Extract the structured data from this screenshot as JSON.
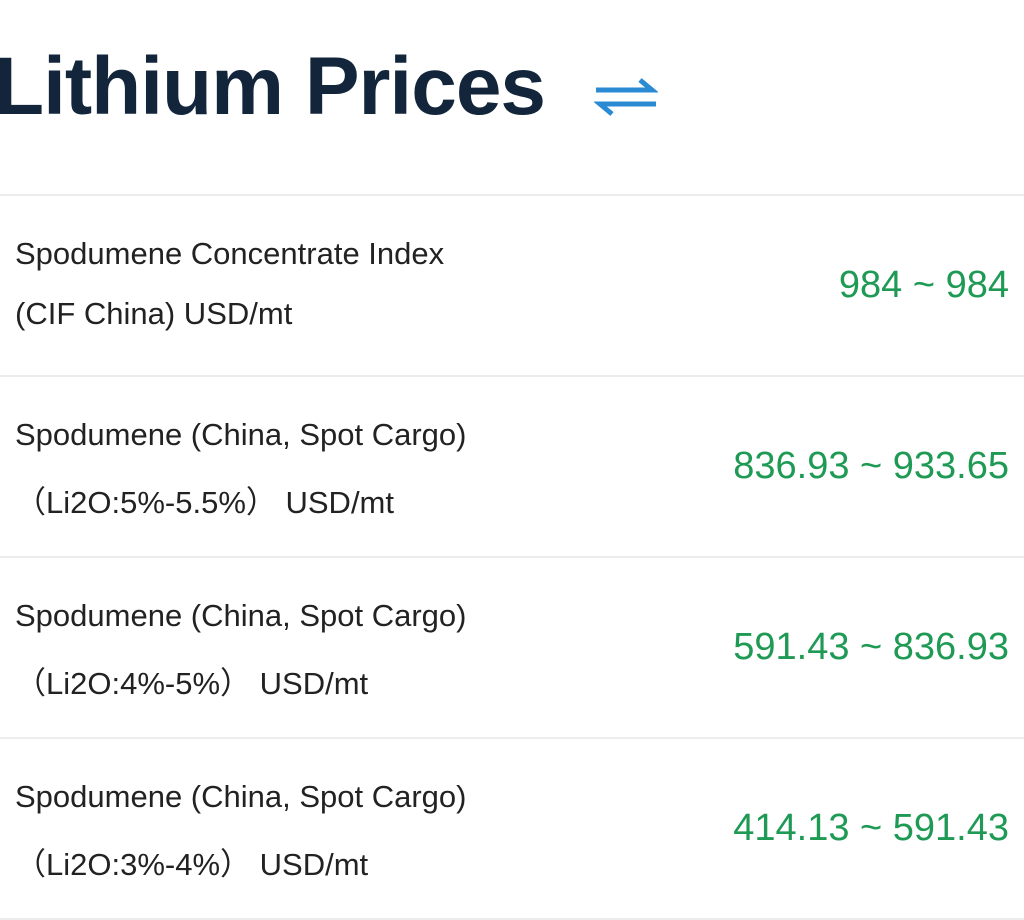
{
  "header": {
    "title": "Lithium Prices"
  },
  "rows": [
    {
      "line1": "Spodumene Concentrate Index",
      "line2": "(CIF China) USD/mt",
      "price": "984 ~ 984"
    },
    {
      "line1": "Spodumene (China, Spot Cargo)",
      "line2": "（Li2O:5%-5.5%） USD/mt",
      "price": "836.93 ~ 933.65"
    },
    {
      "line1": "Spodumene (China, Spot Cargo)",
      "line2": "（Li2O:4%-5%） USD/mt",
      "price": "591.43 ~ 836.93"
    },
    {
      "line1": "Spodumene (China, Spot Cargo)",
      "line2": "（Li2O:3%-4%） USD/mt",
      "price": "414.13 ~ 591.43"
    }
  ]
}
